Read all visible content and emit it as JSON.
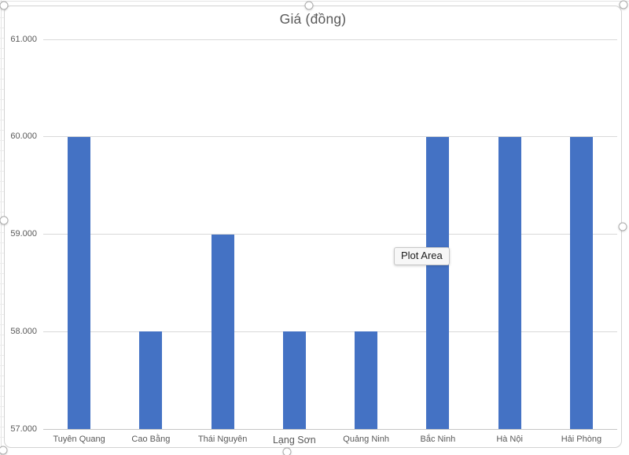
{
  "chart": {
    "title": "Giá (đồng)"
  },
  "tooltip": {
    "text": "Plot Area"
  },
  "chart_data": {
    "type": "bar",
    "title": "Giá (đồng)",
    "categories": [
      "Tuyên Quang",
      "Cao Bằng",
      "Thái Nguyên",
      "Lạng Sơn",
      "Quảng Ninh",
      "Bắc Ninh",
      "Hà Nội",
      "Hải Phòng"
    ],
    "values": [
      60000,
      58000,
      59000,
      58000,
      58000,
      60000,
      60000,
      60000
    ],
    "xlabel": "",
    "ylabel": "",
    "ylim": [
      57000,
      61000
    ],
    "ytick_interval": 1000,
    "ytick_labels": [
      "57.000",
      "58.000",
      "59.000",
      "60.000",
      "61.000"
    ],
    "grid": true,
    "legend": false,
    "bar_color": "#4472C4"
  },
  "colors": {
    "bar": "#4472C4",
    "gridline": "#d9d9d9",
    "axis_line": "#c6c6c6",
    "axis_text": "#595959",
    "title_text": "#595959",
    "frame_border": "#d2d2d2",
    "tooltip_bg": "#f7f7f7",
    "tooltip_border": "#c8c8c8",
    "tooltip_text": "#1c1c1c"
  }
}
